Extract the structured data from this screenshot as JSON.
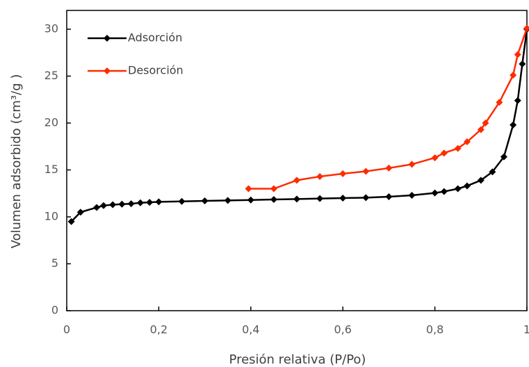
{
  "chart_data": {
    "type": "line",
    "x_label": "Presión relativa (P/Po)",
    "y_label": "Volumen adsorbido (cm³/g )",
    "xlim": [
      0,
      1
    ],
    "ylim": [
      0,
      32
    ],
    "xticks": [
      0,
      {
        "value": 0.2,
        "label": "0,2"
      },
      {
        "value": 0.4,
        "label": "0,4"
      },
      {
        "value": 0.6,
        "label": "0,6"
      },
      {
        "value": 0.8,
        "label": "0,8"
      },
      1
    ],
    "yticks": [
      0,
      5,
      10,
      15,
      20,
      25,
      30
    ],
    "legend": "upper left",
    "series": [
      {
        "name": "Adsorción",
        "color": "#000000",
        "x": [
          0.01,
          0.03,
          0.065,
          0.08,
          0.1,
          0.12,
          0.14,
          0.16,
          0.18,
          0.2,
          0.25,
          0.3,
          0.35,
          0.4,
          0.45,
          0.5,
          0.55,
          0.6,
          0.65,
          0.7,
          0.75,
          0.8,
          0.82,
          0.85,
          0.87,
          0.9,
          0.925,
          0.95,
          0.97,
          0.98,
          0.99,
          1.0
        ],
        "values": [
          9.5,
          10.5,
          11.0,
          11.2,
          11.3,
          11.35,
          11.4,
          11.5,
          11.55,
          11.6,
          11.65,
          11.7,
          11.75,
          11.8,
          11.85,
          11.9,
          11.95,
          12.0,
          12.05,
          12.15,
          12.3,
          12.55,
          12.7,
          13.0,
          13.3,
          13.9,
          14.8,
          16.4,
          19.8,
          22.4,
          26.3,
          30.0
        ]
      },
      {
        "name": "Desorción",
        "color": "#ff2a00",
        "x": [
          0.395,
          0.45,
          0.5,
          0.55,
          0.6,
          0.65,
          0.7,
          0.75,
          0.8,
          0.82,
          0.85,
          0.87,
          0.9,
          0.91,
          0.94,
          0.97,
          0.98,
          1.0
        ],
        "values": [
          13.0,
          13.0,
          13.9,
          14.3,
          14.6,
          14.85,
          15.2,
          15.6,
          16.3,
          16.8,
          17.3,
          18.0,
          19.3,
          20.0,
          22.2,
          25.1,
          27.3,
          30.1
        ]
      }
    ]
  }
}
